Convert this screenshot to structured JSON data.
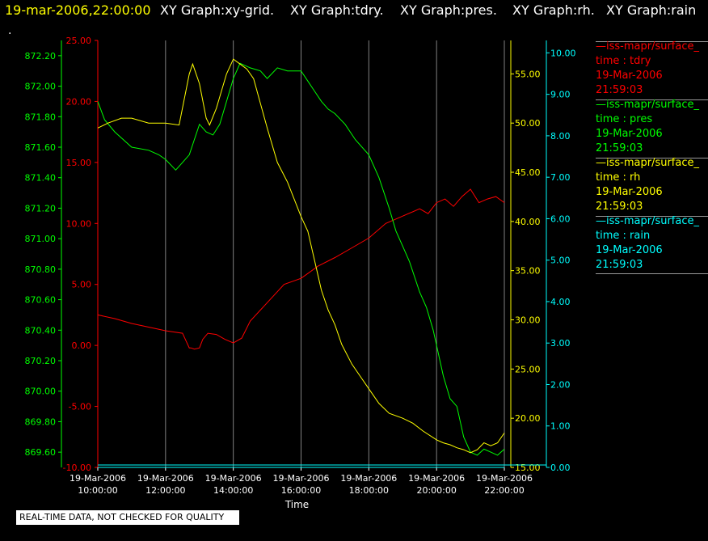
{
  "header": {
    "timestamp": "19-mar-2006,22:00:00",
    "graphs": [
      "XY Graph:xy-grid.",
      "XY Graph:tdry.",
      "XY Graph:pres.",
      "XY Graph:rh.",
      "XY Graph:rain"
    ],
    "timestamp_color": "#ffff00",
    "graph_color": "#ffffff"
  },
  "dot": ".",
  "legend": [
    {
      "name": "—iss-mapr/surface_",
      "var": "time : tdry",
      "date": "19-Mar-2006",
      "time": "21:59:03",
      "color": "#ff0000"
    },
    {
      "name": "—iss-mapr/surface_",
      "var": "time : pres",
      "date": "19-Mar-2006",
      "time": "21:59:03",
      "color": "#00ff00"
    },
    {
      "name": "—iss-mapr/surface_",
      "var": "time : rh",
      "date": "19-Mar-2006",
      "time": "21:59:03",
      "color": "#ffff00"
    },
    {
      "name": "—iss-mapr/surface_",
      "var": "time : rain",
      "date": "19-Mar-2006",
      "time": "21:59:03",
      "color": "#00ffff"
    }
  ],
  "notice": "REAL-TIME DATA, NOT CHECKED FOR QUALITY",
  "chart_data": {
    "type": "line",
    "xlabel": "Time",
    "x_ticks": [
      "19-Mar-2006 10:00:00",
      "19-Mar-2006 12:00:00",
      "19-Mar-2006 14:00:00",
      "19-Mar-2006 16:00:00",
      "19-Mar-2006 18:00:00",
      "19-Mar-2006 20:00:00",
      "19-Mar-2006 22:00:00"
    ],
    "xlim_hours": [
      10,
      22
    ],
    "grid": "vertical",
    "axes": {
      "tdry": {
        "color": "#ff0000",
        "ylim": [
          -10,
          25
        ],
        "ticks": [
          "25.00",
          "20.00",
          "15.00",
          "10.00",
          "5.00",
          "0.00",
          "-5.00",
          "-10.00"
        ]
      },
      "pres": {
        "color": "#00ff00",
        "ylim": [
          869.5,
          872.3
        ],
        "ticks": [
          "872.20",
          "872.00",
          "871.80",
          "871.60",
          "871.40",
          "871.20",
          "871.00",
          "870.80",
          "870.60",
          "870.40",
          "870.20",
          "870.00",
          "869.80",
          "869.60"
        ]
      },
      "rh": {
        "color": "#ffff00",
        "ylim": [
          15,
          58.4
        ],
        "ticks": [
          "55.00",
          "50.00",
          "45.00",
          "40.00",
          "35.00",
          "30.00",
          "25.00",
          "20.00",
          "15.00"
        ]
      },
      "rain": {
        "color": "#00ffff",
        "ylim": [
          0,
          10.3
        ],
        "ticks": [
          "10.00",
          "9.00",
          "8.00",
          "7.00",
          "6.00",
          "5.00",
          "4.00",
          "3.00",
          "2.00",
          "1.00",
          "0.00"
        ]
      }
    },
    "series": [
      {
        "name": "tdry",
        "axis": "tdry",
        "color": "#ff0000",
        "x": [
          10.0,
          10.5,
          11.0,
          11.5,
          12.0,
          12.5,
          12.7,
          12.75,
          12.85,
          13.0,
          13.1,
          13.25,
          13.5,
          13.75,
          14.0,
          14.25,
          14.5,
          15.0,
          15.5,
          16.0,
          16.5,
          17.0,
          17.5,
          18.0,
          18.5,
          19.0,
          19.5,
          19.75,
          20.0,
          20.25,
          20.5,
          20.75,
          21.0,
          21.25,
          21.5,
          21.75,
          22.0
        ],
        "y": [
          2.5,
          2.2,
          1.8,
          1.5,
          1.2,
          1.0,
          -0.2,
          -0.2,
          -0.3,
          -0.2,
          0.5,
          1.0,
          0.9,
          0.5,
          0.2,
          0.6,
          2.0,
          3.5,
          5.0,
          5.5,
          6.5,
          7.2,
          8.0,
          8.8,
          10.0,
          10.6,
          11.2,
          10.8,
          11.7,
          12.0,
          11.4,
          12.2,
          12.8,
          11.7,
          12.0,
          12.2,
          11.7
        ]
      },
      {
        "name": "pres",
        "axis": "pres",
        "color": "#00ff00",
        "x": [
          10.0,
          10.2,
          10.5,
          11.0,
          11.5,
          11.8,
          12.0,
          12.3,
          12.5,
          12.7,
          13.0,
          13.2,
          13.4,
          13.6,
          13.8,
          14.0,
          14.2,
          14.5,
          14.8,
          15.0,
          15.3,
          15.6,
          16.0,
          16.3,
          16.6,
          16.8,
          17.0,
          17.3,
          17.6,
          18.0,
          18.3,
          18.6,
          18.8,
          19.0,
          19.2,
          19.5,
          19.7,
          19.9,
          20.2,
          20.4,
          20.6,
          20.8,
          21.0,
          21.2,
          21.4,
          21.6,
          21.8,
          22.0
        ],
        "y": [
          871.9,
          871.78,
          871.7,
          871.6,
          871.58,
          871.55,
          871.52,
          871.45,
          871.5,
          871.55,
          871.75,
          871.7,
          871.68,
          871.75,
          871.9,
          872.05,
          872.15,
          872.12,
          872.1,
          872.05,
          872.12,
          872.1,
          872.1,
          872.0,
          871.9,
          871.85,
          871.82,
          871.75,
          871.65,
          871.55,
          871.4,
          871.2,
          871.05,
          870.95,
          870.85,
          870.65,
          870.55,
          870.4,
          870.1,
          869.95,
          869.9,
          869.7,
          869.6,
          869.58,
          869.62,
          869.6,
          869.58,
          869.62
        ]
      },
      {
        "name": "rh",
        "axis": "rh",
        "color": "#ffff00",
        "x": [
          10.0,
          10.3,
          10.7,
          11.0,
          11.5,
          12.0,
          12.4,
          12.7,
          12.8,
          13.0,
          13.2,
          13.3,
          13.5,
          13.8,
          14.0,
          14.2,
          14.4,
          14.6,
          14.8,
          15.0,
          15.3,
          15.6,
          16.0,
          16.2,
          16.4,
          16.6,
          16.8,
          17.0,
          17.2,
          17.5,
          17.8,
          18.0,
          18.3,
          18.6,
          19.0,
          19.3,
          19.6,
          20.0,
          20.2,
          20.4,
          20.6,
          20.8,
          21.0,
          21.2,
          21.4,
          21.6,
          21.8,
          22.0
        ],
        "y": [
          49.5,
          50.0,
          50.5,
          50.5,
          50.0,
          50.0,
          49.8,
          55.0,
          56.0,
          54.0,
          50.5,
          49.8,
          51.5,
          55.0,
          56.5,
          56.0,
          55.5,
          54.5,
          52.0,
          49.5,
          46.0,
          44.0,
          40.5,
          39.0,
          36.0,
          33.0,
          31.0,
          29.5,
          27.5,
          25.5,
          24.0,
          23.0,
          21.5,
          20.5,
          20.0,
          19.5,
          18.7,
          17.8,
          17.5,
          17.3,
          17.0,
          16.8,
          16.5,
          16.8,
          17.5,
          17.2,
          17.5,
          18.5
        ]
      },
      {
        "name": "rain",
        "axis": "rain",
        "color": "#00ffff",
        "x": [
          10.0,
          22.0
        ],
        "y": [
          0.0,
          0.0
        ]
      }
    ]
  }
}
